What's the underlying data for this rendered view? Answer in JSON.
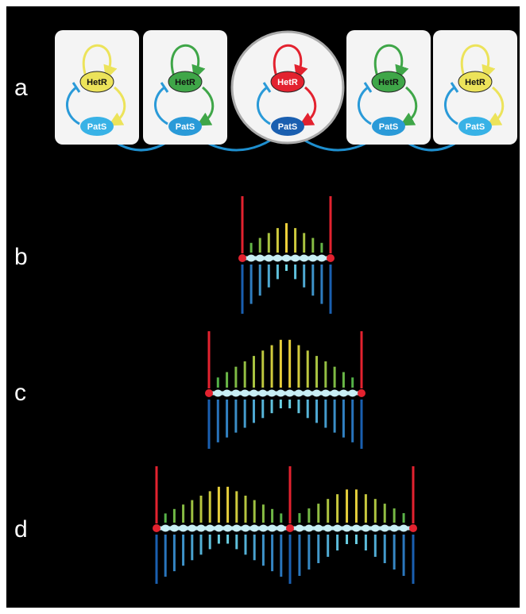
{
  "panels": [
    {
      "label": "a"
    },
    {
      "label": "b"
    },
    {
      "label": "c"
    },
    {
      "label": "d"
    }
  ],
  "cells": [
    {
      "activator": "HetR",
      "inhibitor": "PatS"
    },
    {
      "activator": "HetR",
      "inhibitor": "PatS"
    },
    {
      "activator": "HetR",
      "inhibitor": "PatS"
    },
    {
      "activator": "HetR",
      "inhibitor": "PatS"
    },
    {
      "activator": "HetR",
      "inhibitor": "PatS"
    }
  ]
}
